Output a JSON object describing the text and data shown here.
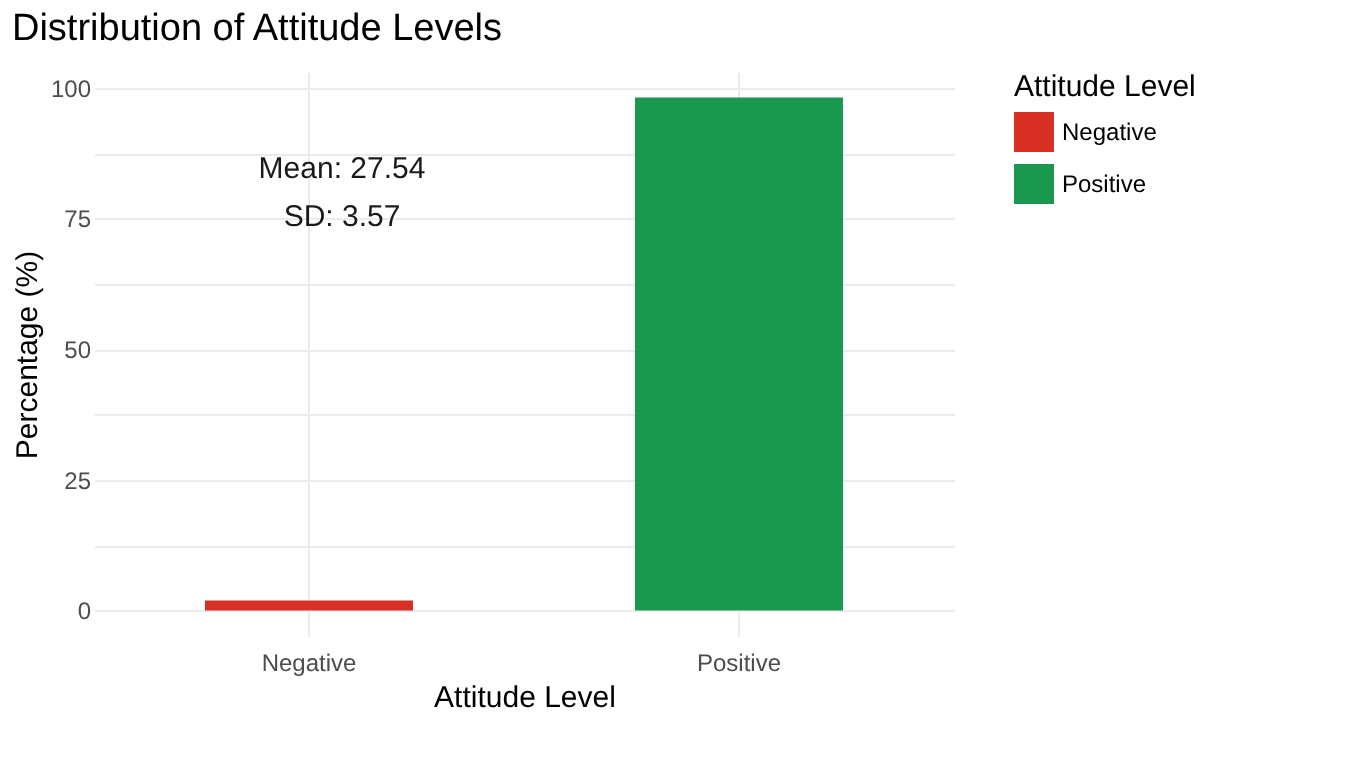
{
  "chart_data": {
    "type": "bar",
    "title": "Distribution of Attitude Levels",
    "xlabel": "Attitude Level",
    "ylabel": "Percentage (%)",
    "legend_title": "Attitude Level",
    "categories": [
      "Negative",
      "Positive"
    ],
    "series": [
      {
        "name": "Negative",
        "color": "#d93025",
        "values": [
          1.9,
          null
        ]
      },
      {
        "name": "Positive",
        "color": "#1b9850",
        "values": [
          null,
          98.1
        ]
      }
    ],
    "ylim": [
      -4.9,
      103
    ],
    "yticks": [
      0,
      {
        "value": 12.5,
        "label": null
      },
      25,
      {
        "value": 37.5,
        "label": null
      },
      50,
      {
        "value": 62.5,
        "label": null
      },
      75,
      {
        "value": 87.5,
        "label": null
      },
      100
    ],
    "grid": true,
    "legend": "right",
    "annotations": [
      "Mean: 27.54",
      "SD: 3.57"
    ]
  }
}
